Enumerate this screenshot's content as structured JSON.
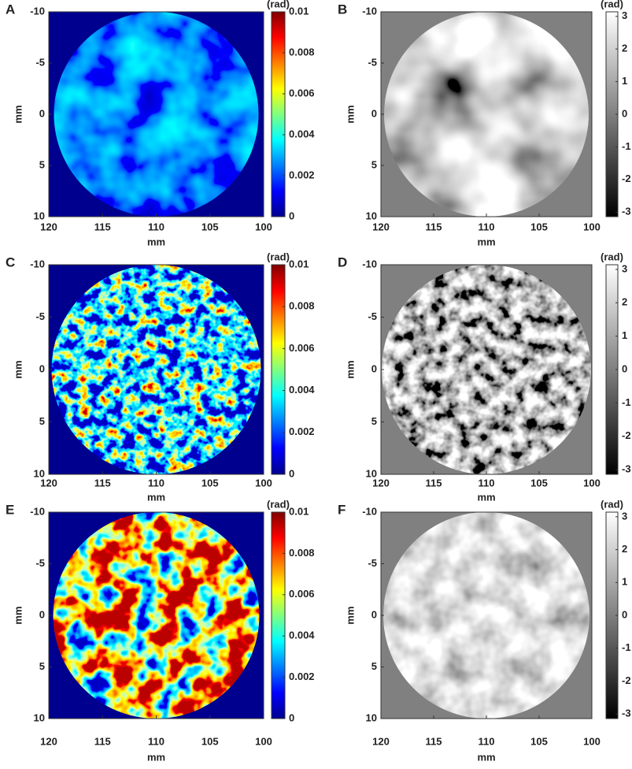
{
  "chart_data": [
    {
      "type": "heatmap",
      "panel": "A",
      "colormap": "jet",
      "xlabel": "mm",
      "ylabel": "mm",
      "colorbar_label": "(rad)",
      "xlim": [
        120,
        100
      ],
      "xticks": [
        120,
        115,
        110,
        105,
        100
      ],
      "ylim": [
        10,
        -10
      ],
      "yticks": [
        -10,
        -5,
        0,
        5,
        10
      ],
      "clim": [
        0,
        0.01
      ],
      "cticks": [
        0,
        0.002,
        0.004,
        0.006,
        0.008,
        0.01
      ]
    },
    {
      "type": "heatmap",
      "panel": "B",
      "colormap": "gray",
      "xlabel": "mm",
      "ylabel": "mm",
      "colorbar_label": "(rad)",
      "xlim": [
        120,
        100
      ],
      "xticks": [
        120,
        115,
        110,
        105,
        100
      ],
      "ylim": [
        10,
        -10
      ],
      "yticks": [
        -10,
        -5,
        0,
        5,
        10
      ],
      "clim": [
        -3.14,
        3.14
      ],
      "cticks": [
        -3,
        -2,
        -1,
        0,
        1,
        2,
        3
      ]
    },
    {
      "type": "heatmap",
      "panel": "C",
      "colormap": "jet",
      "xlabel": "mm",
      "ylabel": "mm",
      "colorbar_label": "(rad)",
      "xlim": [
        120,
        100
      ],
      "xticks": [
        120,
        115,
        110,
        105,
        100
      ],
      "ylim": [
        10,
        -10
      ],
      "yticks": [
        -10,
        -5,
        0,
        5,
        10
      ],
      "clim": [
        0,
        0.01
      ],
      "cticks": [
        0,
        0.002,
        0.004,
        0.006,
        0.008,
        0.01
      ]
    },
    {
      "type": "heatmap",
      "panel": "D",
      "colormap": "gray",
      "xlabel": "mm",
      "ylabel": "mm",
      "colorbar_label": "(rad)",
      "xlim": [
        120,
        100
      ],
      "xticks": [
        120,
        115,
        110,
        105,
        100
      ],
      "ylim": [
        10,
        -10
      ],
      "yticks": [
        -10,
        -5,
        0,
        5,
        10
      ],
      "clim": [
        -3.14,
        3.14
      ],
      "cticks": [
        -3,
        -2,
        -1,
        0,
        1,
        2,
        3
      ]
    },
    {
      "type": "heatmap",
      "panel": "E",
      "colormap": "jet",
      "xlabel": "mm",
      "ylabel": "mm",
      "colorbar_label": "(rad)",
      "xlim": [
        120,
        100
      ],
      "xticks": [
        120,
        115,
        110,
        105,
        100
      ],
      "ylim": [
        10,
        -10
      ],
      "yticks": [
        -10,
        -5,
        0,
        5,
        10
      ],
      "clim": [
        0,
        0.01
      ],
      "cticks": [
        0,
        0.002,
        0.004,
        0.006,
        0.008,
        0.01
      ]
    },
    {
      "type": "heatmap",
      "panel": "F",
      "colormap": "gray",
      "xlabel": "mm",
      "ylabel": "mm",
      "colorbar_label": "(rad)",
      "xlim": [
        120,
        100
      ],
      "xticks": [
        120,
        115,
        110,
        105,
        100
      ],
      "ylim": [
        10,
        -10
      ],
      "yticks": [
        -10,
        -5,
        0,
        5,
        10
      ],
      "clim": [
        -3.14,
        3.14
      ],
      "cticks": [
        -3,
        -2,
        -1,
        0,
        1,
        2,
        3
      ]
    }
  ]
}
